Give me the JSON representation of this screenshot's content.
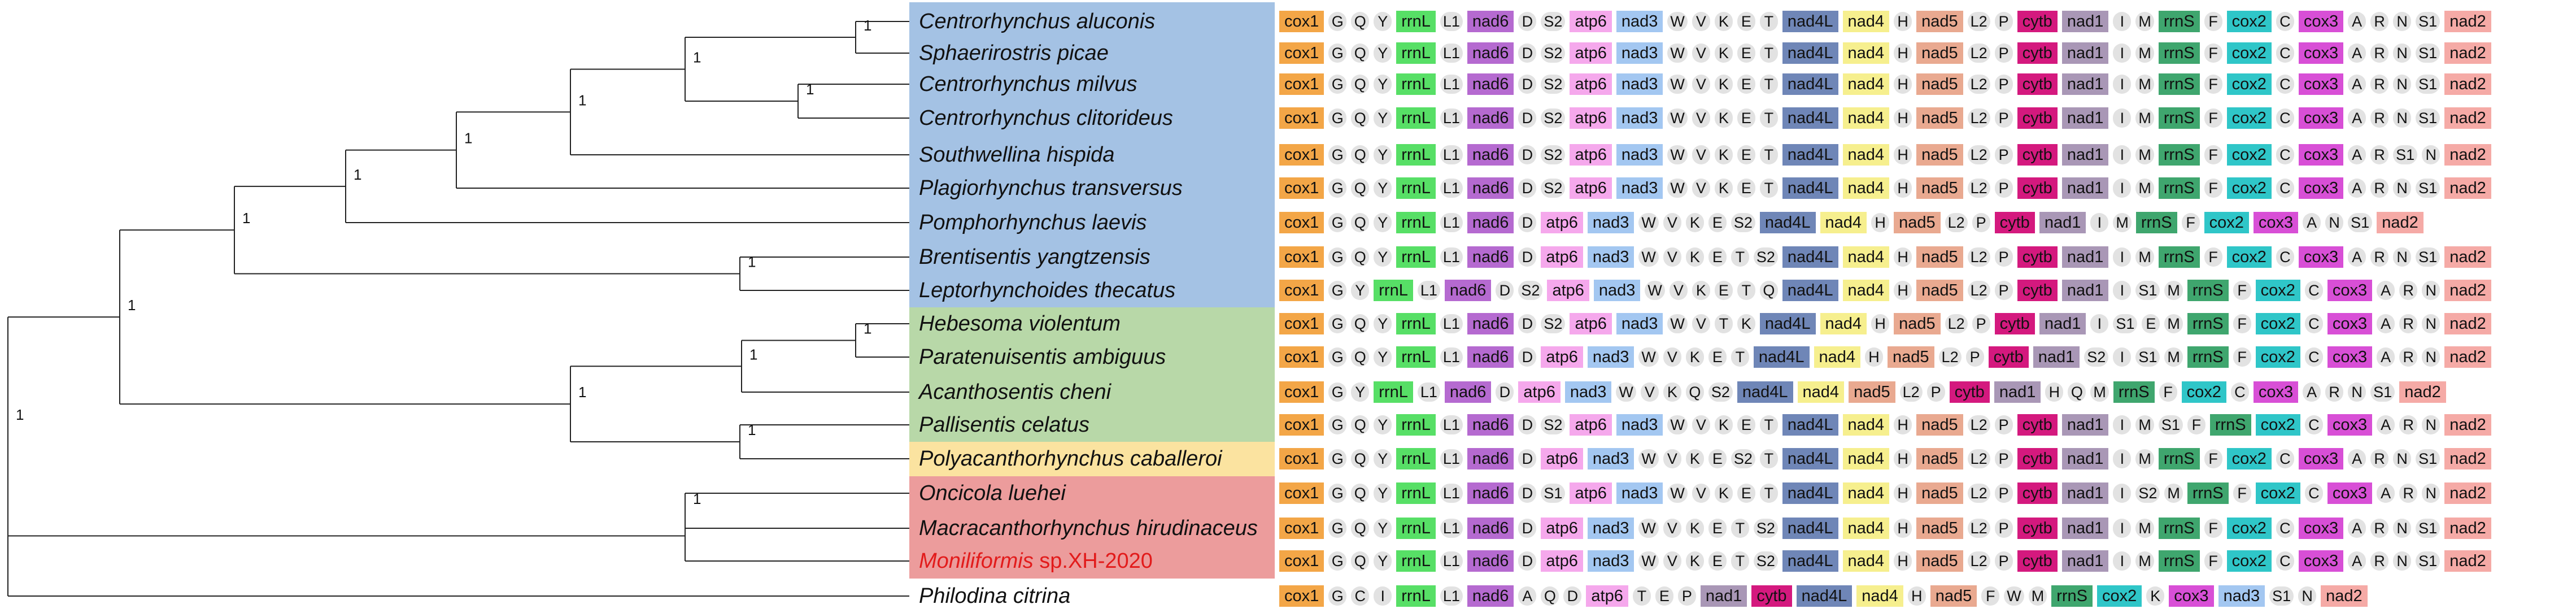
{
  "colors": {
    "clade_blue": "#a4c2e4",
    "clade_green": "#b8d8a8",
    "clade_yellow": "#fbe3a0",
    "clade_red": "#ec9c9c",
    "trna": "#e2e2e2",
    "genes": {
      "cox1": "#f3a647",
      "rrnL": "#57df66",
      "nad6": "#b56ad0",
      "atp6": "#f5a8ec",
      "nad3": "#a3c7f1",
      "nad4L": "#6f86b7",
      "nad4": "#f6ef8e",
      "nad5": "#e9a990",
      "cytb": "#d4197e",
      "nad1": "#a997b6",
      "rrnS": "#3fa66e",
      "cox2": "#2fc6c8",
      "cox3": "#d84fd6",
      "nad2": "#f5aaa6"
    }
  },
  "taxa": [
    {
      "name": "Centrorhynchus aluconis",
      "band": "blue",
      "order": [
        "cox1",
        "G",
        "Q",
        "Y",
        "rrnL",
        "L1",
        "nad6",
        "D",
        "S2",
        "atp6",
        "nad3",
        "W",
        "V",
        "K",
        "E",
        "T",
        "nad4L",
        "nad4",
        "H",
        "nad5",
        "L2",
        "P",
        "cytb",
        "nad1",
        "I",
        "M",
        "rrnS",
        "F",
        "cox2",
        "C",
        "cox3",
        "A",
        "R",
        "N",
        "S1",
        "nad2"
      ]
    },
    {
      "name": "Sphaerirostris picae",
      "band": "blue",
      "order": [
        "cox1",
        "G",
        "Q",
        "Y",
        "rrnL",
        "L1",
        "nad6",
        "D",
        "S2",
        "atp6",
        "nad3",
        "W",
        "V",
        "K",
        "E",
        "T",
        "nad4L",
        "nad4",
        "H",
        "nad5",
        "L2",
        "P",
        "cytb",
        "nad1",
        "I",
        "M",
        "rrnS",
        "F",
        "cox2",
        "C",
        "cox3",
        "A",
        "R",
        "N",
        "S1",
        "nad2"
      ]
    },
    {
      "name": "Centrorhynchus milvus",
      "band": "blue",
      "order": [
        "cox1",
        "G",
        "Q",
        "Y",
        "rrnL",
        "L1",
        "nad6",
        "D",
        "S2",
        "atp6",
        "nad3",
        "W",
        "V",
        "K",
        "E",
        "T",
        "nad4L",
        "nad4",
        "H",
        "nad5",
        "L2",
        "P",
        "cytb",
        "nad1",
        "I",
        "M",
        "rrnS",
        "F",
        "cox2",
        "C",
        "cox3",
        "A",
        "R",
        "N",
        "S1",
        "nad2"
      ]
    },
    {
      "name": "Centrorhynchus clitorideus",
      "band": "blue",
      "order": [
        "cox1",
        "G",
        "Q",
        "Y",
        "rrnL",
        "L1",
        "nad6",
        "D",
        "S2",
        "atp6",
        "nad3",
        "W",
        "V",
        "K",
        "E",
        "T",
        "nad4L",
        "nad4",
        "H",
        "nad5",
        "L2",
        "P",
        "cytb",
        "nad1",
        "I",
        "M",
        "rrnS",
        "F",
        "cox2",
        "C",
        "cox3",
        "A",
        "R",
        "N",
        "S1",
        "nad2"
      ]
    },
    {
      "name": "Southwellina hispida",
      "band": "blue",
      "order": [
        "cox1",
        "G",
        "Q",
        "Y",
        "rrnL",
        "L1",
        "nad6",
        "D",
        "S2",
        "atp6",
        "nad3",
        "W",
        "V",
        "K",
        "E",
        "T",
        "nad4L",
        "nad4",
        "H",
        "nad5",
        "L2",
        "P",
        "cytb",
        "nad1",
        "I",
        "M",
        "rrnS",
        "F",
        "cox2",
        "C",
        "cox3",
        "A",
        "R",
        "S1",
        "N",
        "nad2"
      ]
    },
    {
      "name": "Plagiorhynchus transversus",
      "band": "blue",
      "order": [
        "cox1",
        "G",
        "Q",
        "Y",
        "rrnL",
        "L1",
        "nad6",
        "D",
        "S2",
        "atp6",
        "nad3",
        "W",
        "V",
        "K",
        "E",
        "T",
        "nad4L",
        "nad4",
        "H",
        "nad5",
        "L2",
        "P",
        "cytb",
        "nad1",
        "I",
        "M",
        "rrnS",
        "F",
        "cox2",
        "C",
        "cox3",
        "A",
        "R",
        "N",
        "S1",
        "nad2"
      ]
    },
    {
      "name": "Pomphorhynchus laevis",
      "band": "blue",
      "order": [
        "cox1",
        "G",
        "Q",
        "Y",
        "rrnL",
        "L1",
        "nad6",
        "D",
        "atp6",
        "nad3",
        "W",
        "V",
        "K",
        "E",
        "S2",
        "nad4L",
        "nad4",
        "H",
        "nad5",
        "L2",
        "P",
        "cytb",
        "nad1",
        "I",
        "M",
        "rrnS",
        "F",
        "cox2",
        "cox3",
        "A",
        "N",
        "S1",
        "nad2"
      ]
    },
    {
      "name": "Brentisentis yangtzensis",
      "band": "blue",
      "order": [
        "cox1",
        "G",
        "Q",
        "Y",
        "rrnL",
        "L1",
        "nad6",
        "D",
        "atp6",
        "nad3",
        "W",
        "V",
        "K",
        "E",
        "T",
        "S2",
        "nad4L",
        "nad4",
        "H",
        "nad5",
        "L2",
        "P",
        "cytb",
        "nad1",
        "I",
        "M",
        "rrnS",
        "F",
        "cox2",
        "C",
        "cox3",
        "A",
        "R",
        "N",
        "S1",
        "nad2"
      ]
    },
    {
      "name": "Leptorhynchoides thecatus",
      "band": "blue",
      "order": [
        "cox1",
        "G",
        "Y",
        "rrnL",
        "L1",
        "nad6",
        "D",
        "S2",
        "atp6",
        "nad3",
        "W",
        "V",
        "K",
        "E",
        "T",
        "Q",
        "nad4L",
        "nad4",
        "H",
        "nad5",
        "L2",
        "P",
        "cytb",
        "nad1",
        "I",
        "S1",
        "M",
        "rrnS",
        "F",
        "cox2",
        "C",
        "cox3",
        "A",
        "R",
        "N",
        "nad2"
      ]
    },
    {
      "name": "Hebesoma violentum",
      "band": "green",
      "order": [
        "cox1",
        "G",
        "Q",
        "Y",
        "rrnL",
        "L1",
        "nad6",
        "D",
        "S2",
        "atp6",
        "nad3",
        "W",
        "V",
        "T",
        "K",
        "nad4L",
        "nad4",
        "H",
        "nad5",
        "L2",
        "P",
        "cytb",
        "nad1",
        "I",
        "S1",
        "E",
        "M",
        "rrnS",
        "F",
        "cox2",
        "C",
        "cox3",
        "A",
        "R",
        "N",
        "nad2"
      ]
    },
    {
      "name": "Paratenuisentis ambiguus",
      "band": "green",
      "order": [
        "cox1",
        "G",
        "Q",
        "Y",
        "rrnL",
        "L1",
        "nad6",
        "D",
        "atp6",
        "nad3",
        "W",
        "V",
        "K",
        "E",
        "T",
        "nad4L",
        "nad4",
        "H",
        "nad5",
        "L2",
        "P",
        "cytb",
        "nad1",
        "S2",
        "I",
        "S1",
        "M",
        "rrnS",
        "F",
        "cox2",
        "C",
        "cox3",
        "A",
        "R",
        "N",
        "nad2"
      ]
    },
    {
      "name": "Acanthosentis cheni",
      "band": "green",
      "order": [
        "cox1",
        "G",
        "Y",
        "rrnL",
        "L1",
        "nad6",
        "D",
        "atp6",
        "nad3",
        "W",
        "V",
        "K",
        "Q",
        "S2",
        "nad4L",
        "nad4",
        "nad5",
        "L2",
        "P",
        "cytb",
        "nad1",
        "H",
        "Q",
        "M",
        "rrnS",
        "F",
        "cox2",
        "C",
        "cox3",
        "A",
        "R",
        "N",
        "S1",
        "nad2"
      ]
    },
    {
      "name": "Pallisentis celatus",
      "band": "green",
      "order": [
        "cox1",
        "G",
        "Q",
        "Y",
        "rrnL",
        "L1",
        "nad6",
        "D",
        "S2",
        "atp6",
        "nad3",
        "W",
        "V",
        "K",
        "E",
        "T",
        "nad4L",
        "nad4",
        "H",
        "nad5",
        "L2",
        "P",
        "cytb",
        "nad1",
        "I",
        "M",
        "S1",
        "F",
        "rrnS",
        "cox2",
        "C",
        "cox3",
        "A",
        "R",
        "N",
        "nad2"
      ]
    },
    {
      "name": "Polyacanthorhynchus caballeroi",
      "band": "yellow",
      "order": [
        "cox1",
        "G",
        "Q",
        "Y",
        "rrnL",
        "L1",
        "nad6",
        "D",
        "atp6",
        "nad3",
        "W",
        "V",
        "K",
        "E",
        "S2",
        "T",
        "nad4L",
        "nad4",
        "H",
        "nad5",
        "L2",
        "P",
        "cytb",
        "nad1",
        "I",
        "M",
        "rrnS",
        "F",
        "cox2",
        "C",
        "cox3",
        "A",
        "R",
        "N",
        "S1",
        "nad2"
      ]
    },
    {
      "name": "Oncicola luehei",
      "band": "red",
      "order": [
        "cox1",
        "G",
        "Q",
        "Y",
        "rrnL",
        "L1",
        "nad6",
        "D",
        "S1",
        "atp6",
        "nad3",
        "W",
        "V",
        "K",
        "E",
        "T",
        "nad4L",
        "nad4",
        "H",
        "nad5",
        "L2",
        "P",
        "cytb",
        "nad1",
        "I",
        "S2",
        "M",
        "rrnS",
        "F",
        "cox2",
        "C",
        "cox3",
        "A",
        "R",
        "N",
        "nad2"
      ]
    },
    {
      "name": "Macracanthorhynchus hirudinaceus",
      "band": "red",
      "order": [
        "cox1",
        "G",
        "Q",
        "Y",
        "rrnL",
        "L1",
        "nad6",
        "D",
        "atp6",
        "nad3",
        "W",
        "V",
        "K",
        "E",
        "T",
        "S2",
        "nad4L",
        "nad4",
        "H",
        "nad5",
        "L2",
        "P",
        "cytb",
        "nad1",
        "I",
        "M",
        "rrnS",
        "F",
        "cox2",
        "C",
        "cox3",
        "A",
        "R",
        "N",
        "S1",
        "nad2"
      ]
    },
    {
      "name": "Moniliformis",
      "suffix": " sp.XH-2020",
      "band": "red",
      "red_label": true,
      "order": [
        "cox1",
        "G",
        "Q",
        "Y",
        "rrnL",
        "L1",
        "nad6",
        "D",
        "atp6",
        "nad3",
        "W",
        "V",
        "K",
        "E",
        "T",
        "S2",
        "nad4L",
        "nad4",
        "H",
        "nad5",
        "L2",
        "P",
        "cytb",
        "nad1",
        "I",
        "M",
        "rrnS",
        "F",
        "cox2",
        "C",
        "cox3",
        "A",
        "R",
        "N",
        "S1",
        "nad2"
      ]
    },
    {
      "name": "Philodina citrina",
      "band": "none",
      "order": [
        "cox1",
        "G",
        "C",
        "I",
        "rrnL",
        "L1",
        "nad6",
        "A",
        "Q",
        "D",
        "atp6",
        "T",
        "E",
        "P",
        "nad1",
        "cytb",
        "nad4L",
        "nad4",
        "H",
        "nad5",
        "F",
        "W",
        "M",
        "rrnS",
        "cox2",
        "K",
        "cox3",
        "nad3",
        "S1",
        "N",
        "nad2"
      ]
    }
  ],
  "support_values": [
    "1",
    "1",
    "1",
    "1",
    "1",
    "1",
    "1",
    "1",
    "1",
    "1",
    "1",
    "1",
    "1",
    "1",
    "1",
    "1"
  ]
}
